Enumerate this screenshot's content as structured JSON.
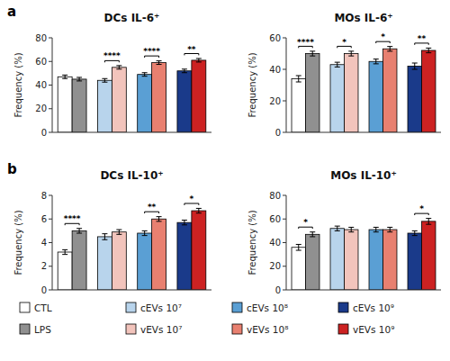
{
  "chart_data": [
    {
      "type": "bar",
      "title": "DCs IL-6⁺",
      "panel_label": "a",
      "y_label": "Frequency (%)",
      "categories": [
        null,
        null,
        null,
        null
      ],
      "series": [
        {
          "values": [
            47,
            44,
            49,
            52
          ],
          "errors": [
            1.5,
            1.5,
            1.5,
            1.5
          ],
          "colors": [
            "#ffffff",
            "#b8d4ec",
            "#5a9fd4",
            "#1a3a8a"
          ]
        },
        {
          "values": [
            45,
            55,
            59,
            61
          ],
          "errors": [
            1.5,
            1.5,
            1.5,
            1.5
          ],
          "colors": [
            "#909090",
            "#f2c4bc",
            "#e88070",
            "#cc2222"
          ]
        }
      ],
      "annotations": [
        null,
        "****",
        "****",
        "**"
      ],
      "ylim": [
        0,
        80
      ],
      "yticks": [
        0,
        20,
        40,
        60,
        80
      ],
      "grid": false,
      "tick_labels": "y"
    },
    {
      "type": "bar",
      "title": "MOs IL-6⁺",
      "y_label": "Frequency (%)",
      "categories": [
        null,
        null,
        null,
        null
      ],
      "series": [
        {
          "values": [
            34,
            43,
            45,
            42
          ],
          "errors": [
            2.0,
            1.5,
            1.5,
            2.0
          ],
          "colors": [
            "#ffffff",
            "#b8d4ec",
            "#5a9fd4",
            "#1a3a8a"
          ]
        },
        {
          "values": [
            50,
            50,
            53,
            52
          ],
          "errors": [
            1.5,
            1.5,
            1.5,
            1.5
          ],
          "colors": [
            "#909090",
            "#f2c4bc",
            "#e88070",
            "#cc2222"
          ]
        }
      ],
      "annotations": [
        "****",
        "*",
        "*",
        "**"
      ],
      "ylim": [
        0,
        60
      ],
      "yticks": [
        0,
        20,
        40,
        60
      ],
      "grid": false,
      "tick_labels": "y"
    },
    {
      "type": "bar",
      "title": "DCs IL-10⁺",
      "panel_label": "b",
      "y_label": "Frequency (%)",
      "categories": [
        null,
        null,
        null,
        null
      ],
      "series": [
        {
          "values": [
            3.2,
            4.5,
            4.8,
            5.7
          ],
          "errors": [
            0.2,
            0.25,
            0.2,
            0.2
          ],
          "colors": [
            "#ffffff",
            "#b8d4ec",
            "#5a9fd4",
            "#1a3a8a"
          ]
        },
        {
          "values": [
            5.0,
            4.9,
            6.0,
            6.7
          ],
          "errors": [
            0.2,
            0.2,
            0.2,
            0.2
          ],
          "colors": [
            "#909090",
            "#f2c4bc",
            "#e88070",
            "#cc2222"
          ]
        }
      ],
      "annotations": [
        "****",
        null,
        "**",
        "*"
      ],
      "ylim": [
        0,
        8
      ],
      "yticks": [
        0,
        2,
        4,
        6,
        8
      ],
      "grid": false,
      "tick_labels": "y"
    },
    {
      "type": "bar",
      "title": "MOs IL-10⁺",
      "y_label": "Frequency (%)",
      "categories": [
        null,
        null,
        null,
        null
      ],
      "series": [
        {
          "values": [
            36,
            52,
            51,
            48
          ],
          "errors": [
            2.5,
            2.0,
            2.0,
            2.0
          ],
          "colors": [
            "#ffffff",
            "#b8d4ec",
            "#5a9fd4",
            "#1a3a8a"
          ]
        },
        {
          "values": [
            47,
            51,
            51,
            58
          ],
          "errors": [
            2.0,
            2.0,
            2.0,
            2.5
          ],
          "colors": [
            "#909090",
            "#f2c4bc",
            "#e88070",
            "#cc2222"
          ]
        }
      ],
      "annotations": [
        "*",
        null,
        null,
        "*"
      ],
      "ylim": [
        0,
        80
      ],
      "yticks": [
        0,
        20,
        40,
        60,
        80
      ],
      "grid": false,
      "tick_labels": "y"
    }
  ],
  "legend_entries": [
    {
      "label": "CTL",
      "color": "#ffffff"
    },
    {
      "label": "cEVs 10⁷",
      "color": "#b8d4ec"
    },
    {
      "label": "cEVs 10⁸",
      "color": "#5a9fd4"
    },
    {
      "label": "cEVs 10⁹",
      "color": "#1a3a8a"
    },
    {
      "label": "LPS",
      "color": "#909090"
    },
    {
      "label": "vEVs 10⁷",
      "color": "#f2c4bc"
    },
    {
      "label": "vEVs 10⁸",
      "color": "#e88070"
    },
    {
      "label": "vEVs 10⁹",
      "color": "#cc2222"
    }
  ]
}
